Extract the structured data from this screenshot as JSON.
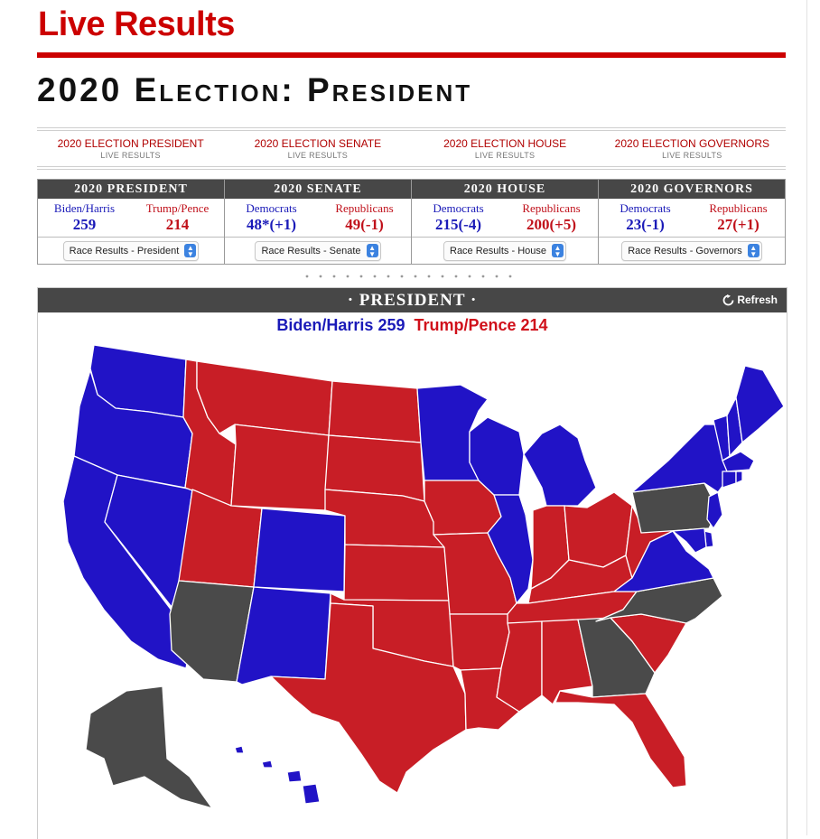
{
  "header": {
    "live_title": "Live Results",
    "page_title": "2020 Election: President"
  },
  "nav_links": [
    {
      "label": "2020 ELECTION PRESIDENT",
      "sub": "LIVE RESULTS"
    },
    {
      "label": "2020 ELECTION SENATE",
      "sub": "LIVE RESULTS"
    },
    {
      "label": "2020 ELECTION HOUSE",
      "sub": "LIVE RESULTS"
    },
    {
      "label": "2020 ELECTION GOVERNORS",
      "sub": "LIVE RESULTS"
    }
  ],
  "summary": [
    {
      "title": "2020 PRESIDENT",
      "left_label": "Biden/Harris",
      "left_value": "259",
      "right_label": "Trump/Pence",
      "right_value": "214",
      "select": "Race Results - President"
    },
    {
      "title": "2020 SENATE",
      "left_label": "Democrats",
      "left_value": "48*(+1)",
      "right_label": "Republicans",
      "right_value": "49(-1)",
      "select": "Race Results - Senate"
    },
    {
      "title": "2020 HOUSE",
      "left_label": "Democrats",
      "left_value": "215(-4)",
      "right_label": "Republicans",
      "right_value": "200(+5)",
      "select": "Race Results - House"
    },
    {
      "title": "2020 GOVERNORS",
      "left_label": "Democrats",
      "left_value": "23(-1)",
      "right_label": "Republicans",
      "right_value": "27(+1)",
      "select": "Race Results - Governors"
    }
  ],
  "map_panel": {
    "title": "· PRESIDENT ·",
    "refresh_label": "Refresh",
    "dem_total": "Biden/Harris 259",
    "rep_total": "Trump/Pence 214"
  },
  "colors": {
    "dem": "#2113c6",
    "rep": "#c81e26",
    "undecided": "#4a4a4a",
    "accent_red": "#cc0000",
    "header_gray": "#474747"
  },
  "states": {
    "WA": "dem",
    "OR": "dem",
    "CA": "dem",
    "NV": "dem",
    "ID": "rep",
    "MT": "rep",
    "WY": "rep",
    "UT": "rep",
    "AZ": "undecided",
    "CO": "dem",
    "NM": "dem",
    "ND": "rep",
    "SD": "rep",
    "NE": "rep",
    "KS": "rep",
    "OK": "rep",
    "TX": "rep",
    "MN": "dem",
    "IA": "rep",
    "MO": "rep",
    "AR": "rep",
    "LA": "rep",
    "WI": "dem",
    "IL": "dem",
    "MI": "dem",
    "IN": "rep",
    "OH": "rep",
    "KY": "rep",
    "TN": "rep",
    "MS": "rep",
    "AL": "rep",
    "GA": "undecided",
    "FL": "rep",
    "SC": "rep",
    "NC": "undecided",
    "VA": "dem",
    "WV": "rep",
    "PA": "undecided",
    "NY": "dem",
    "VT": "dem",
    "NH": "dem",
    "ME": "dem",
    "MA": "dem",
    "CT": "dem",
    "RI": "dem",
    "NJ": "dem",
    "DE": "dem",
    "MD": "dem",
    "AK": "undecided",
    "HI": "dem"
  }
}
